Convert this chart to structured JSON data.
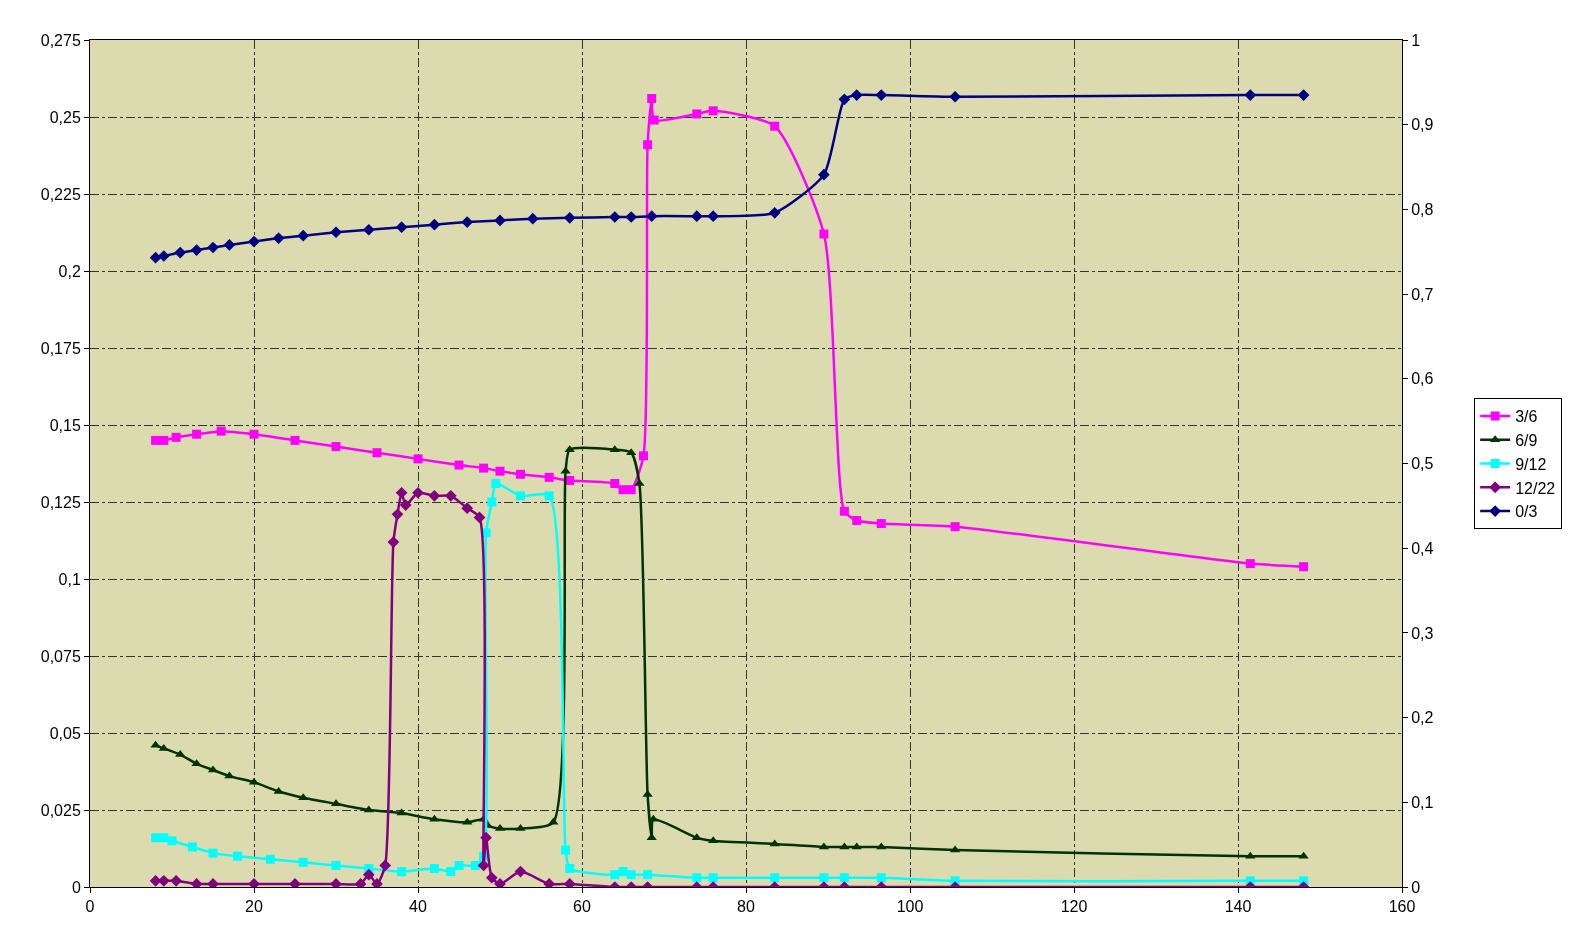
{
  "chart_data": {
    "type": "line",
    "xlim": [
      0,
      160
    ],
    "xticks": [
      0,
      20,
      40,
      60,
      80,
      100,
      120,
      140,
      160
    ],
    "ylim": [
      0,
      0.275
    ],
    "yticks": [
      0,
      {
        "value": 0.025,
        "label": "0,025"
      },
      {
        "value": 0.05,
        "label": "0,05"
      },
      {
        "value": 0.075,
        "label": "0,075"
      },
      {
        "value": 0.1,
        "label": "0,1"
      },
      {
        "value": 0.125,
        "label": "0,125"
      },
      {
        "value": 0.15,
        "label": "0,15"
      },
      {
        "value": 0.175,
        "label": "0,175"
      },
      {
        "value": 0.2,
        "label": "0,2"
      },
      {
        "value": 0.225,
        "label": "0,225"
      },
      {
        "value": 0.25,
        "label": "0,25"
      },
      {
        "value": 0.275,
        "label": "0,275"
      }
    ],
    "y2lim": [
      0,
      1
    ],
    "y2ticks": [
      0,
      {
        "value": 0.1,
        "label": "0,1"
      },
      {
        "value": 0.2,
        "label": "0,2"
      },
      {
        "value": 0.3,
        "label": "0,3"
      },
      {
        "value": 0.4,
        "label": "0,4"
      },
      {
        "value": 0.5,
        "label": "0,5"
      },
      {
        "value": 0.6,
        "label": "0,6"
      },
      {
        "value": 0.7,
        "label": "0,7"
      },
      {
        "value": 0.8,
        "label": "0,8"
      },
      {
        "value": 0.9,
        "label": "0,9"
      },
      1
    ],
    "grid": true,
    "legend": "right",
    "line_style": "solid",
    "series": [
      {
        "name": "3/6",
        "color": "#ff00ff",
        "marker": "square",
        "x": [
          8,
          9,
          10.5,
          13,
          16,
          20,
          25,
          30,
          35,
          40,
          45,
          48,
          50,
          52.5,
          56,
          58.5,
          64,
          65,
          66,
          67.5,
          68,
          68.5,
          68.8,
          74,
          76,
          83.5,
          89.5,
          92,
          93.5,
          96.5,
          105.5,
          141.5,
          148
        ],
        "values": [
          0.145,
          0.145,
          0.146,
          0.147,
          0.148,
          0.147,
          0.145,
          0.143,
          0.141,
          0.139,
          0.137,
          0.136,
          0.135,
          0.134,
          0.133,
          0.132,
          0.131,
          0.129,
          0.129,
          0.14,
          0.241,
          0.256,
          0.249,
          0.251,
          0.252,
          0.247,
          0.212,
          0.122,
          0.119,
          0.118,
          0.117,
          0.105,
          0.104
        ]
      },
      {
        "name": "6/9",
        "color": "#003300",
        "marker": "triangle",
        "x": [
          8,
          9,
          11,
          13,
          15,
          17,
          20,
          23,
          26,
          30,
          34,
          38,
          42,
          46,
          48,
          48.5,
          50,
          52.5,
          56.5,
          58,
          58.5,
          64,
          66,
          67,
          68,
          68.5,
          68.7,
          74,
          76,
          83.5,
          89.5,
          92,
          93.5,
          96.5,
          105.5,
          141.5,
          148
        ],
        "values": [
          0.046,
          0.045,
          0.043,
          0.04,
          0.038,
          0.036,
          0.034,
          0.031,
          0.029,
          0.027,
          0.025,
          0.024,
          0.022,
          0.021,
          0.022,
          0.02,
          0.019,
          0.019,
          0.021,
          0.135,
          0.142,
          0.142,
          0.141,
          0.131,
          0.03,
          0.016,
          0.022,
          0.016,
          0.015,
          0.014,
          0.013,
          0.013,
          0.013,
          0.013,
          0.012,
          0.01,
          0.01
        ]
      },
      {
        "name": "9/12",
        "color": "#00ffff",
        "marker": "square",
        "x": [
          8,
          9,
          10,
          12.5,
          15,
          18,
          22,
          26,
          30,
          34,
          38,
          42,
          44,
          45,
          47,
          48,
          48.3,
          49,
          49.5,
          52.5,
          56,
          58,
          58.5,
          64,
          65,
          66,
          68,
          74,
          76,
          83.5,
          89.5,
          92,
          96.5,
          105.5,
          141.5,
          148
        ],
        "values": [
          0.016,
          0.016,
          0.015,
          0.013,
          0.011,
          0.01,
          0.009,
          0.008,
          0.007,
          0.006,
          0.005,
          0.006,
          0.005,
          0.007,
          0.007,
          0.01,
          0.115,
          0.125,
          0.131,
          0.127,
          0.127,
          0.012,
          0.006,
          0.004,
          0.005,
          0.004,
          0.004,
          0.003,
          0.003,
          0.003,
          0.003,
          0.003,
          0.003,
          0.002,
          0.002,
          0.002
        ]
      },
      {
        "name": "12/22",
        "color": "#800080",
        "marker": "diamond",
        "x": [
          8,
          9,
          10.5,
          13,
          15,
          20,
          25,
          30,
          33,
          34,
          35,
          36,
          37,
          37.5,
          38,
          38.5,
          40,
          42,
          44,
          46,
          47.5,
          48,
          48.3,
          49,
          50,
          52.5,
          56,
          58.5,
          64,
          66,
          68,
          74,
          76,
          83.5,
          89.5,
          92,
          96.5,
          105.5,
          141.5,
          148
        ],
        "values": [
          0.002,
          0.002,
          0.002,
          0.001,
          0.001,
          0.001,
          0.001,
          0.001,
          0.001,
          0.004,
          0.001,
          0.007,
          0.112,
          0.121,
          0.128,
          0.124,
          0.128,
          0.127,
          0.127,
          0.123,
          0.12,
          0.007,
          0.016,
          0.003,
          0.001,
          0.005,
          0.001,
          0.001,
          0,
          0,
          0,
          0,
          0,
          0,
          0,
          0,
          0,
          0,
          0,
          0
        ]
      },
      {
        "name": "0/3",
        "color": "#000080",
        "marker": "diamond",
        "axis": "y2",
        "x": [
          8,
          9,
          11,
          13,
          15,
          17,
          20,
          23,
          26,
          30,
          34,
          38,
          42,
          46,
          50,
          54,
          58.5,
          64,
          66,
          68.5,
          74,
          76,
          83.5,
          89.5,
          92,
          93.5,
          96.5,
          105.5,
          141.5,
          148
        ],
        "values": [
          0.743,
          0.745,
          0.749,
          0.752,
          0.755,
          0.758,
          0.762,
          0.766,
          0.769,
          0.773,
          0.776,
          0.779,
          0.782,
          0.785,
          0.787,
          0.789,
          0.79,
          0.791,
          0.791,
          0.792,
          0.792,
          0.792,
          0.796,
          0.841,
          0.93,
          0.935,
          0.935,
          0.933,
          0.935,
          0.935
        ]
      }
    ]
  }
}
